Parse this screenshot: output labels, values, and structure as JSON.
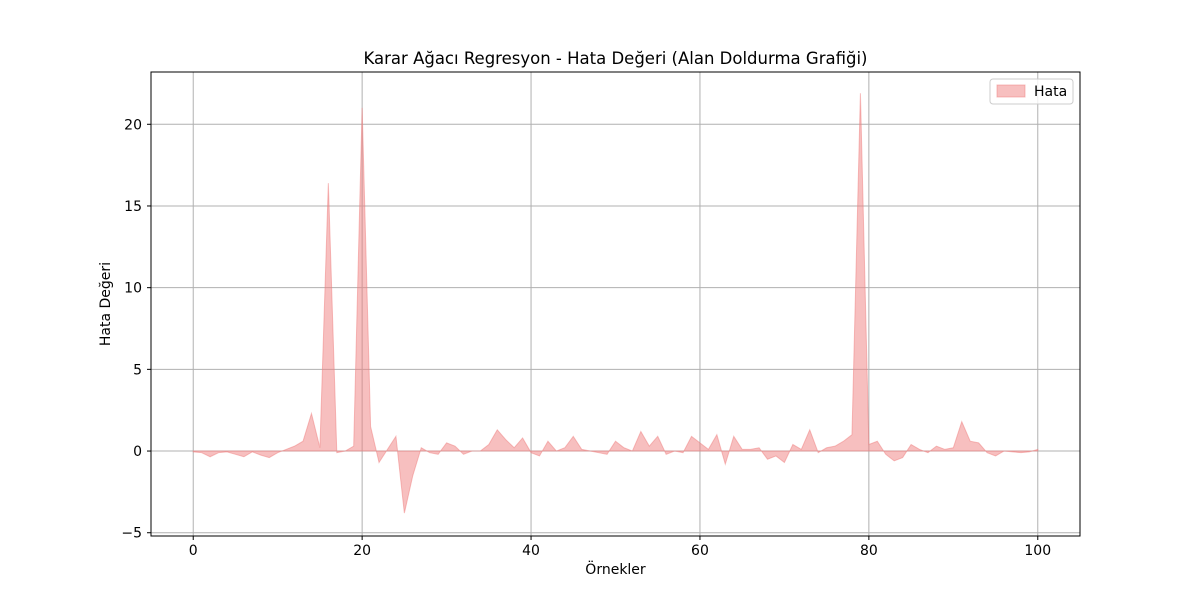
{
  "chart_data": {
    "type": "area",
    "title": "Karar Ağacı Regresyon - Hata Değeri (Alan Doldurma Grafiği)",
    "xlabel": "Örnekler",
    "ylabel": "Hata Değeri",
    "xlim": [
      -5,
      105
    ],
    "ylim": [
      -5.2,
      23.2
    ],
    "xticks": [
      0,
      20,
      40,
      60,
      80,
      100
    ],
    "yticks": [
      -5,
      0,
      5,
      10,
      15,
      20
    ],
    "xtick_labels": [
      "0",
      "20",
      "40",
      "60",
      "80",
      "100"
    ],
    "ytick_labels": [
      "−5",
      "0",
      "5",
      "10",
      "15",
      "20"
    ],
    "grid": true,
    "legend_position": "top-right",
    "series": [
      {
        "name": "Hata",
        "color": "#f08080",
        "fill_opacity": 0.5,
        "x": [
          0,
          1,
          2,
          3,
          4,
          5,
          6,
          7,
          8,
          9,
          10,
          11,
          12,
          13,
          14,
          15,
          16,
          17,
          18,
          19,
          20,
          21,
          22,
          23,
          24,
          25,
          26,
          27,
          28,
          29,
          30,
          31,
          32,
          33,
          34,
          35,
          36,
          37,
          38,
          39,
          40,
          41,
          42,
          43,
          44,
          45,
          46,
          47,
          48,
          49,
          50,
          51,
          52,
          53,
          54,
          55,
          56,
          57,
          58,
          59,
          60,
          61,
          62,
          63,
          64,
          65,
          66,
          67,
          68,
          69,
          70,
          71,
          72,
          73,
          74,
          75,
          76,
          77,
          78,
          79,
          80,
          81,
          82,
          83,
          84,
          85,
          86,
          87,
          88,
          89,
          90,
          91,
          92,
          93,
          94,
          95,
          96,
          97,
          98,
          99,
          100
        ],
        "values": [
          -0.05,
          -0.1,
          -0.35,
          -0.1,
          -0.05,
          -0.2,
          -0.35,
          -0.05,
          -0.25,
          -0.4,
          -0.1,
          0.1,
          0.3,
          0.6,
          2.3,
          0.2,
          16.4,
          -0.1,
          0.0,
          0.3,
          21.0,
          1.5,
          -0.7,
          0.1,
          0.9,
          -3.8,
          -1.5,
          0.2,
          -0.1,
          -0.2,
          0.5,
          0.3,
          -0.2,
          0.0,
          0.0,
          0.4,
          1.3,
          0.7,
          0.2,
          0.8,
          -0.1,
          -0.3,
          0.6,
          0.0,
          0.2,
          0.9,
          0.1,
          0.0,
          -0.1,
          -0.2,
          0.6,
          0.2,
          0.0,
          1.2,
          0.3,
          0.9,
          -0.2,
          0.0,
          -0.1,
          0.9,
          0.5,
          0.1,
          1.0,
          -0.8,
          0.9,
          0.1,
          0.1,
          0.2,
          -0.5,
          -0.3,
          -0.7,
          0.4,
          0.1,
          1.3,
          -0.1,
          0.2,
          0.3,
          0.6,
          1.0,
          21.9,
          0.4,
          0.6,
          -0.2,
          -0.6,
          -0.4,
          0.4,
          0.1,
          -0.1,
          0.3,
          0.1,
          0.2,
          1.8,
          0.6,
          0.5,
          -0.1,
          -0.3,
          0.0,
          -0.05,
          -0.1,
          -0.05,
          0.1
        ]
      }
    ]
  }
}
